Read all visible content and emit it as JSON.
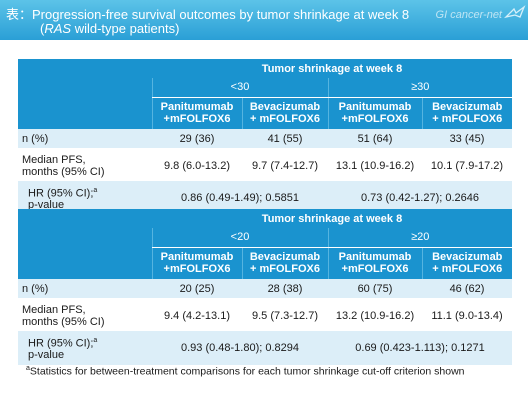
{
  "header": {
    "title_line1": "表：Progression-free survival outcomes by tumor shrinkage at week 8",
    "title_line2_prefix": "(",
    "title_line2_italic": "RAS",
    "title_line2_suffix": " wild-type patients)",
    "brand": "GI cancer-net"
  },
  "table1": {
    "group_header": "Tumor shrinkage at week 8",
    "cutoffs": [
      "<30",
      "≥30"
    ],
    "arms": [
      {
        "line1": "Panitumumab",
        "line2": "+mFOLFOX6"
      },
      {
        "line1": "Bevacizumab",
        "line2": "+ mFOLFOX6"
      },
      {
        "line1": "Panitumumab",
        "line2": "+mFOLFOX6"
      },
      {
        "line1": "Bevacizumab",
        "line2": "+ mFOLFOX6"
      }
    ],
    "rows": {
      "n_label": "n (%)",
      "n_values": [
        "29 (36)",
        "41 (55)",
        "51 (64)",
        "33 (45)"
      ],
      "pfs_label_line1": "Median PFS,",
      "pfs_label_line2": "months (95% CI)",
      "pfs_values": [
        "9.8 (6.0-13.2)",
        "9.7 (7.4-12.7)",
        "13.1 (10.9-16.2)",
        "10.1 (7.9-17.2)"
      ],
      "hr_label_line1": "HR (95% CI);",
      "hr_label_sup": "a",
      "hr_label_line2": "p-value",
      "hr_values": [
        "0.86 (0.49-1.49); 0.5851",
        "0.73 (0.42-1.27); 0.2646"
      ]
    }
  },
  "table2": {
    "group_header": "Tumor shrinkage at week 8",
    "cutoffs": [
      "<20",
      "≥20"
    ],
    "arms": [
      {
        "line1": "Panitumumab",
        "line2": "+mFOLFOX6"
      },
      {
        "line1": "Bevacizumab",
        "line2": "+ mFOLFOX6"
      },
      {
        "line1": "Panitumumab",
        "line2": "+mFOLFOX6"
      },
      {
        "line1": "Bevacizumab",
        "line2": "+ mFOLFOX6"
      }
    ],
    "rows": {
      "n_label": "n (%)",
      "n_values": [
        "20 (25)",
        "28 (38)",
        "60 (75)",
        "46 (62)"
      ],
      "pfs_label_line1": "Median PFS,",
      "pfs_label_line2": "months (95% CI)",
      "pfs_values": [
        "9.4 (4.2-13.1)",
        "9.5 (7.3-12.7)",
        "13.2 (10.9-16.2)",
        "11.1 (9.0-13.4)"
      ],
      "hr_label_line1": "HR (95% CI);",
      "hr_label_sup": "a",
      "hr_label_line2": "p-value",
      "hr_values": [
        "0.93 (0.48-1.80); 0.8294",
        "0.69 (0.423-1.113); 0.1271"
      ]
    }
  },
  "footnote": {
    "sup": "a",
    "text": "Statistics for between-treatment comparisons for each tumor shrinkage cut-off criterion shown"
  },
  "colors": {
    "header_blue": "#1a93cf",
    "row_light": "#dceef8",
    "banner_top": "#5cc3e8",
    "banner_bottom": "#2a9fd6"
  }
}
